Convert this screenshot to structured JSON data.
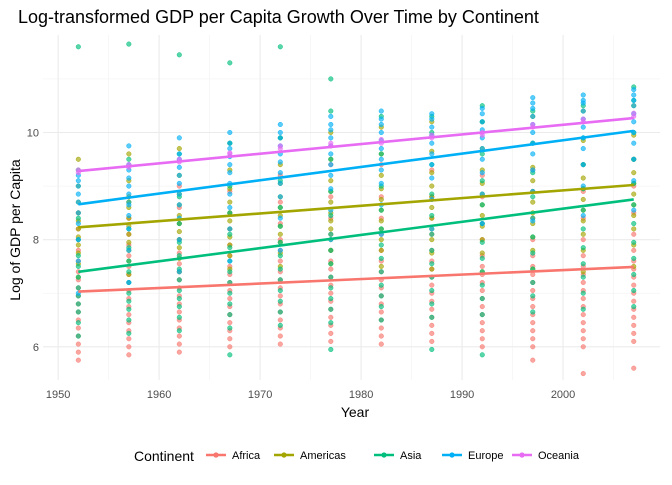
{
  "chart_data": {
    "type": "scatter",
    "title": "Log-transformed GDP per Capita Growth Over Time by Continent",
    "xlabel": "Year",
    "ylabel": "Log of GDP per Capita",
    "xlim": [
      1948.5,
      2009.6
    ],
    "ylim": [
      5.38,
      11.82
    ],
    "x_ticks": [
      1950,
      1960,
      1970,
      1980,
      1990,
      2000
    ],
    "y_ticks": [
      6,
      8,
      10
    ],
    "grid": true,
    "legend": {
      "title": "Continent",
      "placement": "bottom"
    },
    "years": [
      1952,
      1957,
      1962,
      1967,
      1972,
      1977,
      1982,
      1987,
      1992,
      1997,
      2002,
      2007
    ],
    "series": [
      {
        "name": "Africa",
        "color": "#F8766D",
        "trend": [
          [
            1952,
            7.03
          ],
          [
            2007,
            7.49
          ]
        ],
        "points": {
          "1952": [
            5.75,
            5.9,
            6.05,
            6.2,
            6.35,
            6.5,
            6.65,
            6.8,
            6.95,
            7.1,
            7.25,
            7.4,
            7.6,
            7.8,
            8.0,
            8.2,
            8.5
          ],
          "1957": [
            5.85,
            6.0,
            6.15,
            6.3,
            6.45,
            6.6,
            6.75,
            6.9,
            7.05,
            7.2,
            7.35,
            7.5,
            7.7,
            7.9,
            8.1,
            8.4,
            8.7
          ],
          "1962": [
            5.9,
            6.05,
            6.2,
            6.35,
            6.5,
            6.65,
            6.8,
            6.95,
            7.1,
            7.25,
            7.4,
            7.55,
            7.75,
            8.0,
            8.3,
            8.6,
            9.0
          ],
          "1967": [
            6.0,
            6.15,
            6.3,
            6.45,
            6.6,
            6.75,
            6.9,
            7.05,
            7.2,
            7.35,
            7.5,
            7.7,
            7.9,
            8.2,
            8.5,
            8.9
          ],
          "1972": [
            6.05,
            6.2,
            6.35,
            6.5,
            6.65,
            6.8,
            6.95,
            7.1,
            7.25,
            7.4,
            7.6,
            7.8,
            8.0,
            8.3,
            8.7,
            9.2
          ],
          "1977": [
            6.1,
            6.25,
            6.4,
            6.55,
            6.7,
            6.85,
            7.0,
            7.15,
            7.3,
            7.45,
            7.6,
            7.8,
            8.1,
            8.4,
            8.8,
            9.4
          ],
          "1982": [
            6.05,
            6.2,
            6.35,
            6.5,
            6.65,
            6.8,
            6.95,
            7.1,
            7.25,
            7.4,
            7.6,
            7.8,
            8.1,
            8.4,
            8.8,
            9.4
          ],
          "1987": [
            6.1,
            6.25,
            6.4,
            6.55,
            6.7,
            6.85,
            7.0,
            7.15,
            7.3,
            7.45,
            7.6,
            7.8,
            8.1,
            8.4,
            8.8,
            9.3
          ],
          "1992": [
            6.0,
            6.15,
            6.3,
            6.45,
            6.6,
            6.75,
            6.9,
            7.05,
            7.2,
            7.35,
            7.5,
            7.7,
            8.0,
            8.3,
            8.8,
            9.2
          ],
          "1997": [
            5.75,
            6.0,
            6.15,
            6.3,
            6.45,
            6.6,
            6.75,
            6.9,
            7.05,
            7.2,
            7.35,
            7.5,
            7.7,
            8.0,
            8.4,
            8.9,
            9.3
          ],
          "2002": [
            5.5,
            6.0,
            6.15,
            6.3,
            6.45,
            6.6,
            6.75,
            6.9,
            7.05,
            7.2,
            7.35,
            7.5,
            7.7,
            8.0,
            8.4,
            8.9,
            9.4
          ],
          "2007": [
            5.6,
            6.1,
            6.25,
            6.4,
            6.55,
            6.7,
            6.85,
            7.0,
            7.15,
            7.3,
            7.45,
            7.6,
            7.8,
            8.1,
            8.5,
            9.0,
            9.5
          ]
        }
      },
      {
        "name": "Americas",
        "color": "#A3A500",
        "trend": [
          [
            1952,
            8.23
          ],
          [
            2007,
            9.02
          ]
        ],
        "points": {
          "1952": [
            7.3,
            7.55,
            7.75,
            7.9,
            8.05,
            8.2,
            8.35,
            8.5,
            8.7,
            9.0,
            9.5
          ],
          "1957": [
            7.35,
            7.6,
            7.8,
            7.95,
            8.1,
            8.25,
            8.4,
            8.6,
            8.8,
            9.1,
            9.6
          ],
          "1962": [
            7.4,
            7.65,
            7.85,
            8.0,
            8.15,
            8.3,
            8.45,
            8.65,
            8.85,
            9.2,
            9.7
          ],
          "1967": [
            7.45,
            7.7,
            7.9,
            8.05,
            8.2,
            8.35,
            8.5,
            8.7,
            8.95,
            9.3,
            9.8
          ],
          "1972": [
            7.5,
            7.75,
            7.95,
            8.1,
            8.25,
            8.45,
            8.6,
            8.8,
            9.05,
            9.4,
            9.9
          ],
          "1977": [
            7.55,
            7.8,
            8.0,
            8.2,
            8.35,
            8.5,
            8.7,
            8.9,
            9.1,
            9.5,
            10.0
          ],
          "1982": [
            7.5,
            7.8,
            8.0,
            8.2,
            8.35,
            8.55,
            8.75,
            8.95,
            9.2,
            9.6,
            10.1
          ],
          "1987": [
            7.45,
            7.75,
            8.0,
            8.2,
            8.4,
            8.6,
            8.8,
            9.0,
            9.25,
            9.65,
            10.2
          ],
          "1992": [
            7.4,
            7.75,
            8.0,
            8.25,
            8.45,
            8.65,
            8.85,
            9.05,
            9.3,
            9.7,
            10.2
          ],
          "1997": [
            7.45,
            7.8,
            8.05,
            8.3,
            8.5,
            8.7,
            8.9,
            9.1,
            9.35,
            9.8,
            10.3
          ],
          "2002": [
            7.4,
            7.8,
            8.1,
            8.35,
            8.55,
            8.75,
            8.95,
            9.15,
            9.4,
            9.85,
            10.4
          ],
          "2007": [
            7.5,
            7.9,
            8.2,
            8.45,
            8.65,
            8.85,
            9.05,
            9.25,
            9.5,
            9.95,
            10.5
          ]
        }
      },
      {
        "name": "Asia",
        "color": "#00BF7D",
        "trend": [
          [
            1952,
            7.4
          ],
          [
            2007,
            8.75
          ]
        ],
        "points": {
          "1952": [
            6.2,
            6.45,
            6.65,
            6.8,
            6.95,
            7.1,
            7.3,
            7.5,
            7.7,
            8.0,
            8.4,
            9.3,
            11.6
          ],
          "1957": [
            6.25,
            6.5,
            6.7,
            6.85,
            7.0,
            7.2,
            7.4,
            7.6,
            7.85,
            8.2,
            8.7,
            9.5,
            11.65
          ],
          "1962": [
            6.3,
            6.55,
            6.75,
            6.9,
            7.05,
            7.25,
            7.45,
            7.7,
            7.95,
            8.3,
            8.8,
            9.6,
            11.45
          ],
          "1967": [
            5.85,
            6.35,
            6.6,
            6.8,
            7.0,
            7.2,
            7.4,
            7.6,
            7.85,
            8.1,
            8.5,
            9.0,
            9.8,
            11.3
          ],
          "1972": [
            6.4,
            6.65,
            6.85,
            7.05,
            7.25,
            7.45,
            7.7,
            7.95,
            8.25,
            8.6,
            9.1,
            9.9,
            11.6
          ],
          "1977": [
            5.95,
            6.45,
            6.7,
            6.9,
            7.1,
            7.3,
            7.55,
            7.8,
            8.1,
            8.45,
            8.9,
            9.5,
            10.4,
            11.0
          ],
          "1982": [
            6.5,
            6.75,
            6.95,
            7.15,
            7.4,
            7.65,
            7.9,
            8.2,
            8.55,
            9.0,
            9.6,
            10.3
          ],
          "1987": [
            5.95,
            6.55,
            6.8,
            7.05,
            7.3,
            7.55,
            7.8,
            8.1,
            8.45,
            8.85,
            9.4,
            10.0,
            10.3
          ],
          "1992": [
            5.85,
            6.6,
            6.9,
            7.15,
            7.4,
            7.65,
            7.95,
            8.3,
            8.65,
            9.1,
            9.6,
            10.2,
            10.5
          ],
          "1997": [
            6.65,
            6.95,
            7.2,
            7.45,
            7.75,
            8.05,
            8.4,
            8.8,
            9.25,
            9.8,
            10.4
          ],
          "2002": [
            6.7,
            7.0,
            7.3,
            7.55,
            7.85,
            8.2,
            8.55,
            8.95,
            9.4,
            9.9,
            10.5
          ],
          "2007": [
            6.75,
            7.05,
            7.35,
            7.65,
            7.95,
            8.3,
            8.65,
            9.05,
            9.5,
            10.0,
            10.6,
            10.85
          ]
        }
      },
      {
        "name": "Europe",
        "color": "#00B0F6",
        "trend": [
          [
            1952,
            8.66
          ],
          [
            2007,
            10.03
          ]
        ],
        "points": {
          "1952": [
            7.0,
            7.6,
            8.0,
            8.3,
            8.5,
            8.7,
            8.85,
            9.0,
            9.1,
            9.2
          ],
          "1957": [
            7.2,
            7.8,
            8.2,
            8.45,
            8.65,
            8.85,
            9.0,
            9.15,
            9.3,
            9.4,
            9.75
          ],
          "1962": [
            7.4,
            8.0,
            8.4,
            8.65,
            8.85,
            9.05,
            9.2,
            9.35,
            9.5,
            9.6,
            9.9
          ],
          "1967": [
            7.6,
            8.2,
            8.6,
            8.85,
            9.05,
            9.25,
            9.4,
            9.55,
            9.7,
            9.8,
            10.0
          ],
          "1972": [
            7.8,
            8.4,
            8.8,
            9.05,
            9.25,
            9.45,
            9.6,
            9.75,
            9.9,
            10.0,
            10.15
          ],
          "1977": [
            8.0,
            8.55,
            8.95,
            9.2,
            9.4,
            9.6,
            9.75,
            9.9,
            10.05,
            10.15,
            10.3
          ],
          "1982": [
            8.1,
            8.65,
            9.05,
            9.3,
            9.5,
            9.7,
            9.85,
            10.0,
            10.15,
            10.25,
            10.4
          ],
          "1987": [
            8.2,
            8.75,
            9.15,
            9.4,
            9.6,
            9.8,
            9.95,
            10.1,
            10.25,
            10.35
          ],
          "1992": [
            8.3,
            8.85,
            9.25,
            9.5,
            9.7,
            9.9,
            10.05,
            10.2,
            10.35,
            10.45
          ],
          "1997": [
            8.35,
            8.9,
            9.3,
            9.6,
            9.8,
            10.0,
            10.15,
            10.3,
            10.45,
            10.55,
            10.65
          ],
          "2002": [
            8.45,
            9.0,
            9.4,
            9.7,
            9.9,
            10.1,
            10.25,
            10.4,
            10.55,
            10.6,
            10.7
          ],
          "2007": [
            8.55,
            9.1,
            9.5,
            9.8,
            10.0,
            10.2,
            10.35,
            10.5,
            10.6,
            10.7,
            10.8
          ]
        }
      },
      {
        "name": "Oceania",
        "color": "#E76BF3",
        "trend": [
          [
            1952,
            9.28
          ],
          [
            2007,
            10.27
          ]
        ],
        "points": {
          "1952": [
            9.25,
            9.3
          ],
          "1957": [
            9.35,
            9.4
          ],
          "1962": [
            9.45,
            9.5
          ],
          "1967": [
            9.6,
            9.62
          ],
          "1972": [
            9.7,
            9.75
          ],
          "1977": [
            9.75,
            9.8
          ],
          "1982": [
            9.8,
            9.87
          ],
          "1987": [
            9.9,
            9.95
          ],
          "1992": [
            9.95,
            10.0
          ],
          "1997": [
            10.1,
            10.15
          ],
          "2002": [
            10.2,
            10.25
          ],
          "2007": [
            10.3,
            10.36
          ]
        }
      }
    ]
  }
}
